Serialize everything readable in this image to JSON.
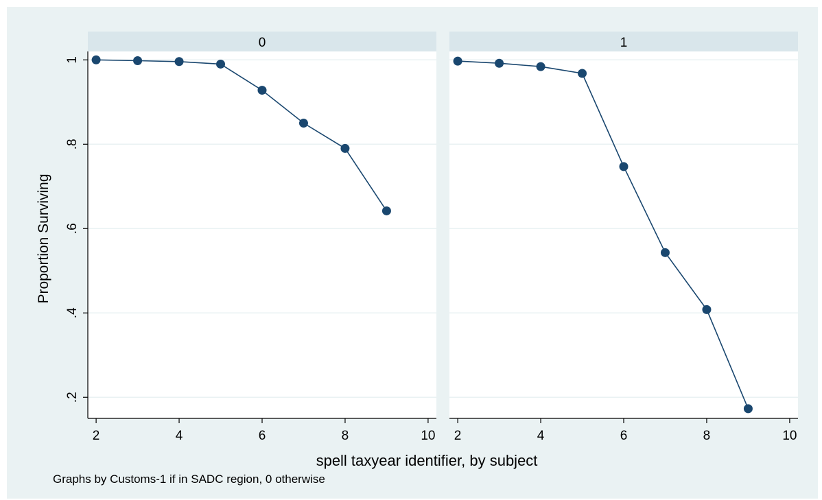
{
  "chart_data": {
    "type": "line",
    "ylabel": "Proportion Surviving",
    "xlabel": "spell taxyear identifier, by subject",
    "note": "Graphs by Customs-1 if in SADC region, 0 otherwise",
    "xlim": [
      1.8,
      10.2
    ],
    "ylim": [
      0.15,
      1.02
    ],
    "grid": true,
    "x_ticks": [
      2,
      4,
      6,
      8,
      10
    ],
    "y_ticks": [
      0.2,
      0.4,
      0.6,
      0.8,
      1.0
    ],
    "y_tick_labels": [
      ".2",
      ".4",
      ".6",
      ".8",
      "1"
    ],
    "line_color": "#1a476f",
    "panels": [
      {
        "label": "0",
        "x": [
          2,
          3,
          4,
          5,
          6,
          7,
          8,
          9
        ],
        "y": [
          1.0,
          0.998,
          0.996,
          0.99,
          0.928,
          0.85,
          0.79,
          0.642
        ]
      },
      {
        "label": "1",
        "x": [
          2,
          3,
          4,
          5,
          6,
          7,
          8,
          9
        ],
        "y": [
          0.997,
          0.992,
          0.984,
          0.968,
          0.747,
          0.543,
          0.408,
          0.173
        ]
      }
    ]
  }
}
